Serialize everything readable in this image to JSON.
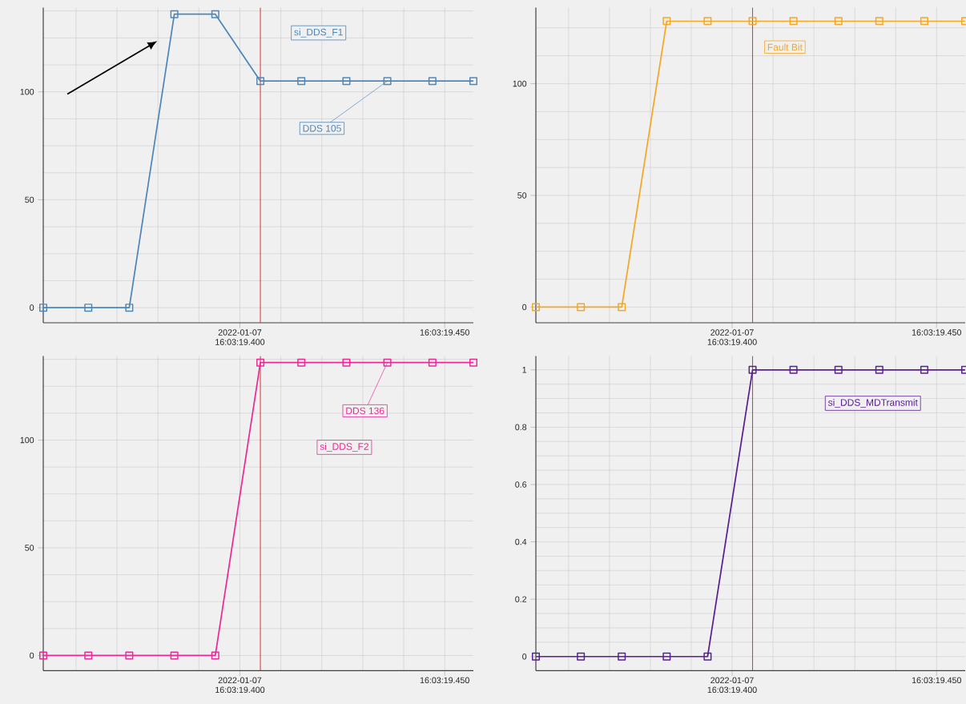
{
  "chart_data": [
    {
      "type": "line",
      "marker": "square",
      "line_style": "solid",
      "grid": true,
      "x": [
        "2022-01-07T16:03:19.352",
        "2022-01-07T16:03:19.363",
        "2022-01-07T16:03:19.373",
        "2022-01-07T16:03:19.384",
        "2022-01-07T16:03:19.394",
        "2022-01-07T16:03:19.405",
        "2022-01-07T16:03:19.415",
        "2022-01-07T16:03:19.426",
        "2022-01-07T16:03:19.436",
        "2022-01-07T16:03:19.447",
        "2022-01-07T16:03:19.457"
      ],
      "series": [
        {
          "name": "si_DDS_F1",
          "color": "#4f86b8",
          "values": [
            0,
            0,
            0,
            136,
            136,
            105,
            105,
            105,
            105,
            105,
            105
          ]
        }
      ],
      "xlim": [
        "2022-01-07T16:03:19.352",
        "2022-01-07T16:03:19.457"
      ],
      "xticks": [
        {
          "value": "2022-01-07T16:03:19.360",
          "label": null
        },
        {
          "value": "2022-01-07T16:03:19.370",
          "label": null
        },
        {
          "value": "2022-01-07T16:03:19.380",
          "label": null
        },
        {
          "value": "2022-01-07T16:03:19.390",
          "label": null
        },
        {
          "value": "2022-01-07T16:03:19.400",
          "label": "2022-01-07 16:03:19.400"
        },
        {
          "value": "2022-01-07T16:03:19.410",
          "label": null
        },
        {
          "value": "2022-01-07T16:03:19.420",
          "label": null
        },
        {
          "value": "2022-01-07T16:03:19.430",
          "label": null
        },
        {
          "value": "2022-01-07T16:03:19.440",
          "label": null
        },
        {
          "value": "2022-01-07T16:03:19.450",
          "label": "16:03:19.450"
        }
      ],
      "ylim": [
        -7,
        139
      ],
      "yticks": [
        0,
        {
          "value": 12.5,
          "label": null
        },
        {
          "value": 25,
          "label": null
        },
        {
          "value": 37.5,
          "label": null
        },
        50,
        {
          "value": 62.5,
          "label": null
        },
        {
          "value": 75,
          "label": null
        },
        {
          "value": 87.5,
          "label": null
        },
        100,
        {
          "value": 112.5,
          "label": null
        },
        {
          "value": 125,
          "label": null
        },
        {
          "value": 137.5,
          "label": null
        }
      ],
      "ref_lines": [
        {
          "axis": "x",
          "value": "2022-01-07T16:03:19.405",
          "color": "#e02020"
        }
      ],
      "annotations": [
        {
          "text": "DDS 105",
          "x": "2022-01-07T16:03:19.436",
          "y": 105
        }
      ]
    },
    {
      "type": "line",
      "marker": "square",
      "line_style": "solid",
      "grid": true,
      "x": [
        "2022-01-07T16:03:19.352",
        "2022-01-07T16:03:19.363",
        "2022-01-07T16:03:19.373",
        "2022-01-07T16:03:19.384",
        "2022-01-07T16:03:19.394",
        "2022-01-07T16:03:19.405",
        "2022-01-07T16:03:19.415",
        "2022-01-07T16:03:19.426",
        "2022-01-07T16:03:19.436",
        "2022-01-07T16:03:19.447",
        "2022-01-07T16:03:19.457"
      ],
      "series": [
        {
          "name": "Fault Bit",
          "color": "#f5a623",
          "values": [
            0,
            0,
            0,
            128,
            128,
            128,
            128,
            128,
            128,
            128,
            128
          ]
        }
      ],
      "xlim": [
        "2022-01-07T16:03:19.352",
        "2022-01-07T16:03:19.457"
      ],
      "xticks": [
        {
          "value": "2022-01-07T16:03:19.360",
          "label": null
        },
        {
          "value": "2022-01-07T16:03:19.370",
          "label": null
        },
        {
          "value": "2022-01-07T16:03:19.380",
          "label": null
        },
        {
          "value": "2022-01-07T16:03:19.390",
          "label": null
        },
        {
          "value": "2022-01-07T16:03:19.400",
          "label": "2022-01-07 16:03:19.400"
        },
        {
          "value": "2022-01-07T16:03:19.410",
          "label": null
        },
        {
          "value": "2022-01-07T16:03:19.420",
          "label": null
        },
        {
          "value": "2022-01-07T16:03:19.430",
          "label": null
        },
        {
          "value": "2022-01-07T16:03:19.440",
          "label": null
        },
        {
          "value": "2022-01-07T16:03:19.450",
          "label": "16:03:19.450"
        }
      ],
      "ylim": [
        -7,
        134
      ],
      "yticks": [
        0,
        {
          "value": 12.5,
          "label": null
        },
        {
          "value": 25,
          "label": null
        },
        {
          "value": 37.5,
          "label": null
        },
        50,
        {
          "value": 62.5,
          "label": null
        },
        {
          "value": 75,
          "label": null
        },
        {
          "value": 87.5,
          "label": null
        },
        100,
        {
          "value": 112.5,
          "label": null
        },
        {
          "value": 125,
          "label": null
        }
      ],
      "ref_lines": [
        {
          "axis": "x",
          "value": "2022-01-07T16:03:19.405",
          "color": "#e02020"
        }
      ]
    },
    {
      "type": "line",
      "marker": "square",
      "line_style": "solid",
      "grid": true,
      "x": [
        "2022-01-07T16:03:19.352",
        "2022-01-07T16:03:19.363",
        "2022-01-07T16:03:19.373",
        "2022-01-07T16:03:19.384",
        "2022-01-07T16:03:19.394",
        "2022-01-07T16:03:19.405",
        "2022-01-07T16:03:19.415",
        "2022-01-07T16:03:19.426",
        "2022-01-07T16:03:19.436",
        "2022-01-07T16:03:19.447",
        "2022-01-07T16:03:19.457"
      ],
      "series": [
        {
          "name": "si_DDS_F2",
          "color": "#ec2a96",
          "values": [
            0,
            0,
            0,
            0,
            0,
            136,
            136,
            136,
            136,
            136,
            136
          ]
        }
      ],
      "xlim": [
        "2022-01-07T16:03:19.352",
        "2022-01-07T16:03:19.457"
      ],
      "xticks": [
        {
          "value": "2022-01-07T16:03:19.360",
          "label": null
        },
        {
          "value": "2022-01-07T16:03:19.370",
          "label": null
        },
        {
          "value": "2022-01-07T16:03:19.380",
          "label": null
        },
        {
          "value": "2022-01-07T16:03:19.390",
          "label": null
        },
        {
          "value": "2022-01-07T16:03:19.400",
          "label": "2022-01-07 16:03:19.400"
        },
        {
          "value": "2022-01-07T16:03:19.410",
          "label": null
        },
        {
          "value": "2022-01-07T16:03:19.420",
          "label": null
        },
        {
          "value": "2022-01-07T16:03:19.430",
          "label": null
        },
        {
          "value": "2022-01-07T16:03:19.440",
          "label": null
        },
        {
          "value": "2022-01-07T16:03:19.450",
          "label": "16:03:19.450"
        }
      ],
      "ylim": [
        -7,
        139
      ],
      "yticks": [
        0,
        {
          "value": 12.5,
          "label": null
        },
        {
          "value": 25,
          "label": null
        },
        {
          "value": 37.5,
          "label": null
        },
        50,
        {
          "value": 62.5,
          "label": null
        },
        {
          "value": 75,
          "label": null
        },
        {
          "value": 87.5,
          "label": null
        },
        100,
        {
          "value": 112.5,
          "label": null
        },
        {
          "value": 125,
          "label": null
        },
        {
          "value": 137.5,
          "label": null
        }
      ],
      "ref_lines": [
        {
          "axis": "x",
          "value": "2022-01-07T16:03:19.405",
          "color": "#e02020"
        }
      ],
      "annotations": [
        {
          "text": "DDS 136",
          "x": "2022-01-07T16:03:19.436",
          "y": 136
        }
      ]
    },
    {
      "type": "line",
      "marker": "square",
      "line_style": "solid",
      "grid": true,
      "x": [
        "2022-01-07T16:03:19.352",
        "2022-01-07T16:03:19.363",
        "2022-01-07T16:03:19.373",
        "2022-01-07T16:03:19.384",
        "2022-01-07T16:03:19.394",
        "2022-01-07T16:03:19.405",
        "2022-01-07T16:03:19.415",
        "2022-01-07T16:03:19.426",
        "2022-01-07T16:03:19.436",
        "2022-01-07T16:03:19.447",
        "2022-01-07T16:03:19.457"
      ],
      "series": [
        {
          "name": "si_DDS_MDTransmit",
          "color": "#5a1e96",
          "values": [
            0,
            0,
            0,
            0,
            0,
            1,
            1,
            1,
            1,
            1,
            1
          ]
        }
      ],
      "xlim": [
        "2022-01-07T16:03:19.352",
        "2022-01-07T16:03:19.457"
      ],
      "xticks": [
        {
          "value": "2022-01-07T16:03:19.360",
          "label": null
        },
        {
          "value": "2022-01-07T16:03:19.370",
          "label": null
        },
        {
          "value": "2022-01-07T16:03:19.380",
          "label": null
        },
        {
          "value": "2022-01-07T16:03:19.390",
          "label": null
        },
        {
          "value": "2022-01-07T16:03:19.400",
          "label": "2022-01-07 16:03:19.400"
        },
        {
          "value": "2022-01-07T16:03:19.410",
          "label": null
        },
        {
          "value": "2022-01-07T16:03:19.420",
          "label": null
        },
        {
          "value": "2022-01-07T16:03:19.430",
          "label": null
        },
        {
          "value": "2022-01-07T16:03:19.440",
          "label": null
        },
        {
          "value": "2022-01-07T16:03:19.450",
          "label": "16:03:19.450"
        }
      ],
      "ylim": [
        -0.049,
        1.048
      ],
      "yticks": [
        0,
        {
          "value": 0.05,
          "label": null
        },
        {
          "value": 0.1,
          "label": null
        },
        {
          "value": 0.15,
          "label": null
        },
        0.2,
        {
          "value": 0.25,
          "label": null
        },
        {
          "value": 0.3,
          "label": null
        },
        {
          "value": 0.35,
          "label": null
        },
        0.4,
        {
          "value": 0.45,
          "label": null
        },
        {
          "value": 0.5,
          "label": null
        },
        {
          "value": 0.55,
          "label": null
        },
        0.6,
        {
          "value": 0.65,
          "label": null
        },
        {
          "value": 0.7,
          "label": null
        },
        {
          "value": 0.75,
          "label": null
        },
        0.8,
        {
          "value": 0.85,
          "label": null
        },
        {
          "value": 0.9,
          "label": null
        },
        {
          "value": 0.95,
          "label": null
        },
        1
      ],
      "ref_lines": [
        {
          "axis": "x",
          "value": "2022-01-07T16:03:19.405",
          "color": "#e02020"
        }
      ]
    }
  ]
}
